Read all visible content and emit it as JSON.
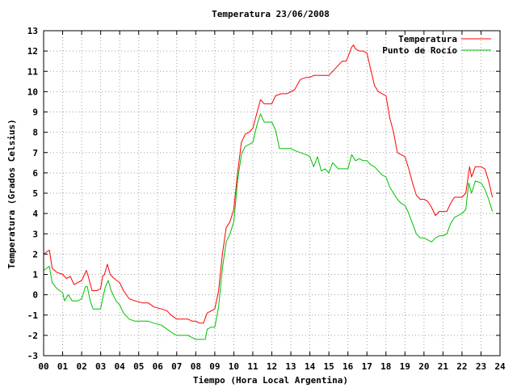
{
  "chart_data": {
    "type": "line",
    "title": "Temperatura 23/06/2008",
    "xlabel": "Tiempo (Hora Local Argentina)",
    "ylabel": "Temperatura (Grados Celsius)",
    "xlim": [
      0,
      24
    ],
    "ylim": [
      -3,
      13
    ],
    "x_ticks": [
      "00",
      "01",
      "02",
      "03",
      "04",
      "05",
      "06",
      "07",
      "08",
      "09",
      "10",
      "11",
      "12",
      "13",
      "14",
      "15",
      "16",
      "17",
      "18",
      "19",
      "20",
      "21",
      "22",
      "23",
      "24"
    ],
    "y_ticks": [
      "-3",
      "-2",
      "-1",
      "0",
      "1",
      "2",
      "3",
      "4",
      "5",
      "6",
      "7",
      "8",
      "9",
      "10",
      "11",
      "12",
      "13"
    ],
    "grid": true,
    "legend_position": "top-right",
    "series": [
      {
        "name": "Temperatura",
        "color": "#ff0000",
        "points": [
          [
            0.0,
            2.0
          ],
          [
            0.15,
            2.1
          ],
          [
            0.3,
            2.2
          ],
          [
            0.45,
            1.3
          ],
          [
            0.7,
            1.1
          ],
          [
            1.0,
            1.0
          ],
          [
            1.2,
            0.8
          ],
          [
            1.4,
            0.9
          ],
          [
            1.6,
            0.5
          ],
          [
            1.8,
            0.6
          ],
          [
            2.0,
            0.7
          ],
          [
            2.15,
            1.0
          ],
          [
            2.25,
            1.2
          ],
          [
            2.35,
            0.9
          ],
          [
            2.55,
            0.2
          ],
          [
            2.8,
            0.2
          ],
          [
            3.0,
            0.3
          ],
          [
            3.1,
            0.9
          ],
          [
            3.2,
            1.0
          ],
          [
            3.35,
            1.5
          ],
          [
            3.5,
            1.0
          ],
          [
            3.7,
            0.8
          ],
          [
            4.0,
            0.6
          ],
          [
            4.2,
            0.2
          ],
          [
            4.5,
            -0.2
          ],
          [
            4.8,
            -0.3
          ],
          [
            5.2,
            -0.4
          ],
          [
            5.5,
            -0.4
          ],
          [
            5.8,
            -0.6
          ],
          [
            6.2,
            -0.7
          ],
          [
            6.5,
            -0.8
          ],
          [
            6.7,
            -1.0
          ],
          [
            7.0,
            -1.2
          ],
          [
            7.3,
            -1.2
          ],
          [
            7.6,
            -1.2
          ],
          [
            7.8,
            -1.3
          ],
          [
            8.0,
            -1.3
          ],
          [
            8.2,
            -1.4
          ],
          [
            8.4,
            -1.4
          ],
          [
            8.6,
            -0.9
          ],
          [
            8.8,
            -0.8
          ],
          [
            9.0,
            -0.7
          ],
          [
            9.2,
            0.2
          ],
          [
            9.4,
            2.0
          ],
          [
            9.6,
            3.3
          ],
          [
            9.8,
            3.6
          ],
          [
            10.0,
            4.2
          ],
          [
            10.2,
            6.0
          ],
          [
            10.4,
            7.5
          ],
          [
            10.6,
            7.9
          ],
          [
            10.8,
            8.0
          ],
          [
            11.0,
            8.2
          ],
          [
            11.2,
            8.9
          ],
          [
            11.4,
            9.6
          ],
          [
            11.6,
            9.4
          ],
          [
            11.8,
            9.4
          ],
          [
            12.0,
            9.4
          ],
          [
            12.2,
            9.8
          ],
          [
            12.5,
            9.9
          ],
          [
            12.8,
            9.9
          ],
          [
            13.0,
            10.0
          ],
          [
            13.2,
            10.1
          ],
          [
            13.5,
            10.6
          ],
          [
            13.8,
            10.7
          ],
          [
            14.0,
            10.7
          ],
          [
            14.2,
            10.8
          ],
          [
            14.5,
            10.8
          ],
          [
            14.8,
            10.8
          ],
          [
            15.0,
            10.8
          ],
          [
            15.2,
            11.0
          ],
          [
            15.5,
            11.3
          ],
          [
            15.7,
            11.5
          ],
          [
            15.9,
            11.5
          ],
          [
            16.0,
            11.7
          ],
          [
            16.2,
            12.2
          ],
          [
            16.3,
            12.3
          ],
          [
            16.4,
            12.1
          ],
          [
            16.6,
            12.0
          ],
          [
            16.8,
            12.0
          ],
          [
            17.0,
            11.9
          ],
          [
            17.2,
            11.1
          ],
          [
            17.4,
            10.3
          ],
          [
            17.6,
            10.0
          ],
          [
            17.8,
            9.9
          ],
          [
            18.0,
            9.8
          ],
          [
            18.2,
            8.7
          ],
          [
            18.4,
            8.0
          ],
          [
            18.6,
            7.0
          ],
          [
            18.8,
            6.9
          ],
          [
            19.0,
            6.8
          ],
          [
            19.2,
            6.2
          ],
          [
            19.4,
            5.5
          ],
          [
            19.6,
            4.9
          ],
          [
            19.8,
            4.7
          ],
          [
            20.0,
            4.7
          ],
          [
            20.2,
            4.6
          ],
          [
            20.4,
            4.3
          ],
          [
            20.6,
            3.9
          ],
          [
            20.8,
            4.1
          ],
          [
            21.0,
            4.1
          ],
          [
            21.2,
            4.1
          ],
          [
            21.4,
            4.5
          ],
          [
            21.6,
            4.8
          ],
          [
            21.8,
            4.8
          ],
          [
            22.0,
            4.8
          ],
          [
            22.2,
            5.0
          ],
          [
            22.4,
            6.3
          ],
          [
            22.5,
            5.8
          ],
          [
            22.7,
            6.3
          ],
          [
            23.0,
            6.3
          ],
          [
            23.2,
            6.2
          ],
          [
            23.4,
            5.6
          ],
          [
            23.6,
            4.8
          ]
        ]
      },
      {
        "name": "Punto de Rocío",
        "color": "#00c000",
        "points": [
          [
            0.0,
            1.2
          ],
          [
            0.15,
            1.3
          ],
          [
            0.3,
            1.4
          ],
          [
            0.45,
            0.6
          ],
          [
            0.7,
            0.3
          ],
          [
            1.0,
            0.1
          ],
          [
            1.1,
            -0.3
          ],
          [
            1.3,
            0.0
          ],
          [
            1.5,
            -0.3
          ],
          [
            1.8,
            -0.3
          ],
          [
            2.0,
            -0.2
          ],
          [
            2.2,
            0.4
          ],
          [
            2.3,
            0.4
          ],
          [
            2.45,
            -0.3
          ],
          [
            2.6,
            -0.7
          ],
          [
            3.0,
            -0.7
          ],
          [
            3.1,
            -0.2
          ],
          [
            3.25,
            0.4
          ],
          [
            3.4,
            0.7
          ],
          [
            3.55,
            0.2
          ],
          [
            3.8,
            -0.3
          ],
          [
            4.0,
            -0.5
          ],
          [
            4.2,
            -0.9
          ],
          [
            4.5,
            -1.2
          ],
          [
            4.8,
            -1.3
          ],
          [
            5.2,
            -1.3
          ],
          [
            5.5,
            -1.3
          ],
          [
            5.8,
            -1.4
          ],
          [
            6.2,
            -1.5
          ],
          [
            6.5,
            -1.7
          ],
          [
            6.8,
            -1.9
          ],
          [
            7.0,
            -2.0
          ],
          [
            7.3,
            -2.0
          ],
          [
            7.6,
            -2.0
          ],
          [
            7.8,
            -2.1
          ],
          [
            8.0,
            -2.2
          ],
          [
            8.3,
            -2.2
          ],
          [
            8.5,
            -2.2
          ],
          [
            8.6,
            -1.7
          ],
          [
            8.8,
            -1.6
          ],
          [
            9.0,
            -1.6
          ],
          [
            9.2,
            -0.6
          ],
          [
            9.4,
            1.3
          ],
          [
            9.6,
            2.6
          ],
          [
            9.8,
            3.0
          ],
          [
            10.0,
            3.6
          ],
          [
            10.2,
            5.6
          ],
          [
            10.4,
            6.9
          ],
          [
            10.6,
            7.3
          ],
          [
            10.8,
            7.4
          ],
          [
            11.0,
            7.5
          ],
          [
            11.2,
            8.3
          ],
          [
            11.4,
            8.9
          ],
          [
            11.6,
            8.5
          ],
          [
            11.8,
            8.5
          ],
          [
            12.0,
            8.5
          ],
          [
            12.2,
            8.1
          ],
          [
            12.4,
            7.2
          ],
          [
            12.7,
            7.2
          ],
          [
            13.0,
            7.2
          ],
          [
            13.2,
            7.1
          ],
          [
            13.5,
            7.0
          ],
          [
            13.8,
            6.9
          ],
          [
            14.0,
            6.8
          ],
          [
            14.2,
            6.3
          ],
          [
            14.4,
            6.8
          ],
          [
            14.6,
            6.1
          ],
          [
            14.8,
            6.2
          ],
          [
            15.0,
            6.0
          ],
          [
            15.2,
            6.5
          ],
          [
            15.5,
            6.2
          ],
          [
            15.8,
            6.2
          ],
          [
            16.0,
            6.2
          ],
          [
            16.2,
            6.9
          ],
          [
            16.4,
            6.6
          ],
          [
            16.6,
            6.7
          ],
          [
            16.8,
            6.6
          ],
          [
            17.0,
            6.6
          ],
          [
            17.2,
            6.4
          ],
          [
            17.4,
            6.3
          ],
          [
            17.6,
            6.1
          ],
          [
            17.8,
            5.9
          ],
          [
            18.0,
            5.8
          ],
          [
            18.2,
            5.3
          ],
          [
            18.4,
            5.0
          ],
          [
            18.6,
            4.7
          ],
          [
            18.8,
            4.5
          ],
          [
            19.0,
            4.4
          ],
          [
            19.2,
            4.0
          ],
          [
            19.4,
            3.5
          ],
          [
            19.6,
            3.0
          ],
          [
            19.8,
            2.8
          ],
          [
            20.0,
            2.8
          ],
          [
            20.2,
            2.7
          ],
          [
            20.4,
            2.6
          ],
          [
            20.6,
            2.8
          ],
          [
            20.8,
            2.9
          ],
          [
            21.0,
            2.9
          ],
          [
            21.2,
            3.0
          ],
          [
            21.4,
            3.5
          ],
          [
            21.6,
            3.8
          ],
          [
            21.8,
            3.9
          ],
          [
            22.0,
            4.0
          ],
          [
            22.2,
            4.2
          ],
          [
            22.35,
            5.5
          ],
          [
            22.5,
            5.0
          ],
          [
            22.7,
            5.6
          ],
          [
            23.0,
            5.5
          ],
          [
            23.2,
            5.2
          ],
          [
            23.4,
            4.7
          ],
          [
            23.6,
            4.1
          ]
        ]
      }
    ]
  }
}
